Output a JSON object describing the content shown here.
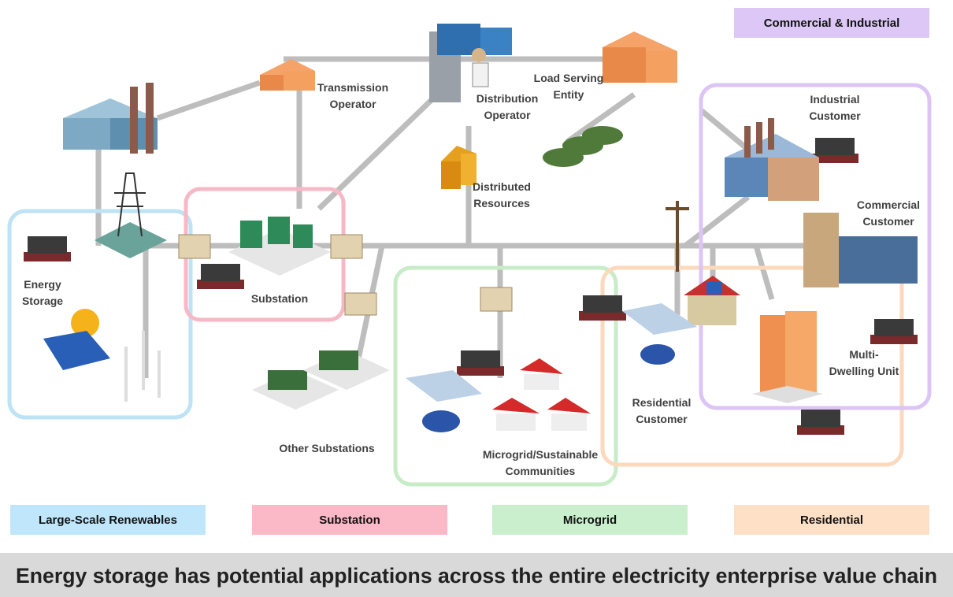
{
  "legend": [
    {
      "label": "Commercial & Industrial"
    },
    {
      "label": "Large-Scale Renewables"
    },
    {
      "label": "Substation"
    },
    {
      "label": "Microgrid"
    },
    {
      "label": "Residential"
    }
  ],
  "nodes": [
    {
      "label": [
        "Transmission",
        "Operator"
      ]
    },
    {
      "label": [
        "Distribution",
        "Operator"
      ]
    },
    {
      "label": [
        "Load Serving",
        "Entity"
      ]
    },
    {
      "label": [
        "Distributed",
        "Resources"
      ]
    },
    {
      "label": [
        "Industrial",
        "Customer"
      ]
    },
    {
      "label": [
        "Commercial",
        "Customer"
      ]
    },
    {
      "label": [
        "Energy",
        "Storage"
      ]
    },
    {
      "label": [
        "Substation"
      ]
    },
    {
      "label": [
        "Other Substations"
      ]
    },
    {
      "label": [
        "Microgrid/Sustainable",
        "Communities"
      ]
    },
    {
      "label": [
        "Residential",
        "Customer"
      ]
    },
    {
      "label": [
        "Multi-",
        "Dwelling Unit"
      ]
    }
  ],
  "caption": "Energy storage has potential applications across the entire electricity enterprise value chain"
}
